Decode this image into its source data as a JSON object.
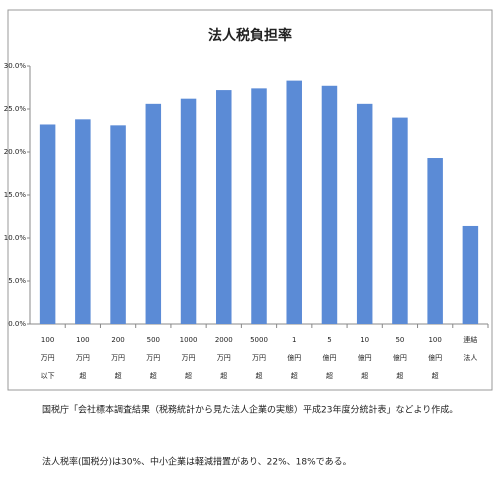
{
  "chart_data": {
    "type": "bar",
    "title": "法人税負担率",
    "categories": [
      [
        "100",
        "万円",
        "以下"
      ],
      [
        "100",
        "万円",
        "超"
      ],
      [
        "200",
        "万円",
        "超"
      ],
      [
        "500",
        "万円",
        "超"
      ],
      [
        "1000",
        "万円",
        "超"
      ],
      [
        "2000",
        "万円",
        "超"
      ],
      [
        "5000",
        "万円",
        "超"
      ],
      [
        "1",
        "億円",
        "超"
      ],
      [
        "5",
        "億円",
        "超"
      ],
      [
        "10",
        "億円",
        "超"
      ],
      [
        "50",
        "億円",
        "超"
      ],
      [
        "100",
        "億円",
        "超"
      ],
      [
        "連結",
        "法人"
      ]
    ],
    "values": [
      23.2,
      23.8,
      23.1,
      25.6,
      26.2,
      27.2,
      27.4,
      28.3,
      27.7,
      25.6,
      24.0,
      19.3,
      11.4
    ],
    "color": "#5b8bd6",
    "ylim": [
      0,
      30
    ],
    "yticks": [
      {
        "value": 0,
        "label": "0.0%"
      },
      {
        "value": 5,
        "label": "5.0%"
      },
      {
        "value": 10,
        "label": "10.0%"
      },
      {
        "value": 15,
        "label": "15.0%"
      },
      {
        "value": 20,
        "label": "20.0%"
      },
      {
        "value": 25,
        "label": "25.0%"
      },
      {
        "value": 30,
        "label": "30.0%"
      }
    ],
    "grid": false
  },
  "notes": [
    "国税庁「会社標本調査結果（税務統計から見た法人企業の実態）平成23年度分統計表」などより作成。",
    "法人税率(国税分)は30%、中小企業は軽減措置があり、22%、18%である。"
  ]
}
